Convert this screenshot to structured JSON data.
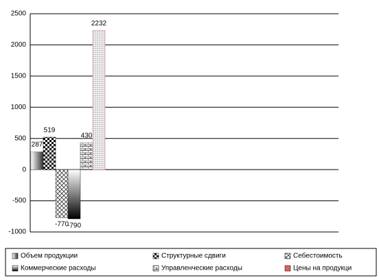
{
  "chart_data": {
    "type": "bar",
    "categories": [
      null
    ],
    "series": [
      {
        "name": "Объем продукции",
        "color": "#808080",
        "values": [
          287
        ]
      },
      {
        "name": "Структурные сдвиги",
        "color": "#000000",
        "values": [
          519
        ]
      },
      {
        "name": "Себестоимость",
        "color": "#404040",
        "values": [
          -770
        ]
      },
      {
        "name": "Коммерческие расходы",
        "color": "#202020",
        "values": [
          -790
        ]
      },
      {
        "name": "Управленческие расходы",
        "color": "#303030",
        "values": [
          430
        ]
      },
      {
        "name": "Цены на продукци",
        "color": "#e06060",
        "values": [
          2232
        ]
      }
    ],
    "ylim": [
      -1000,
      2500
    ],
    "yticks": [
      -1000,
      -500,
      0,
      500,
      1000,
      1500,
      2000,
      2500
    ],
    "grid": true
  }
}
